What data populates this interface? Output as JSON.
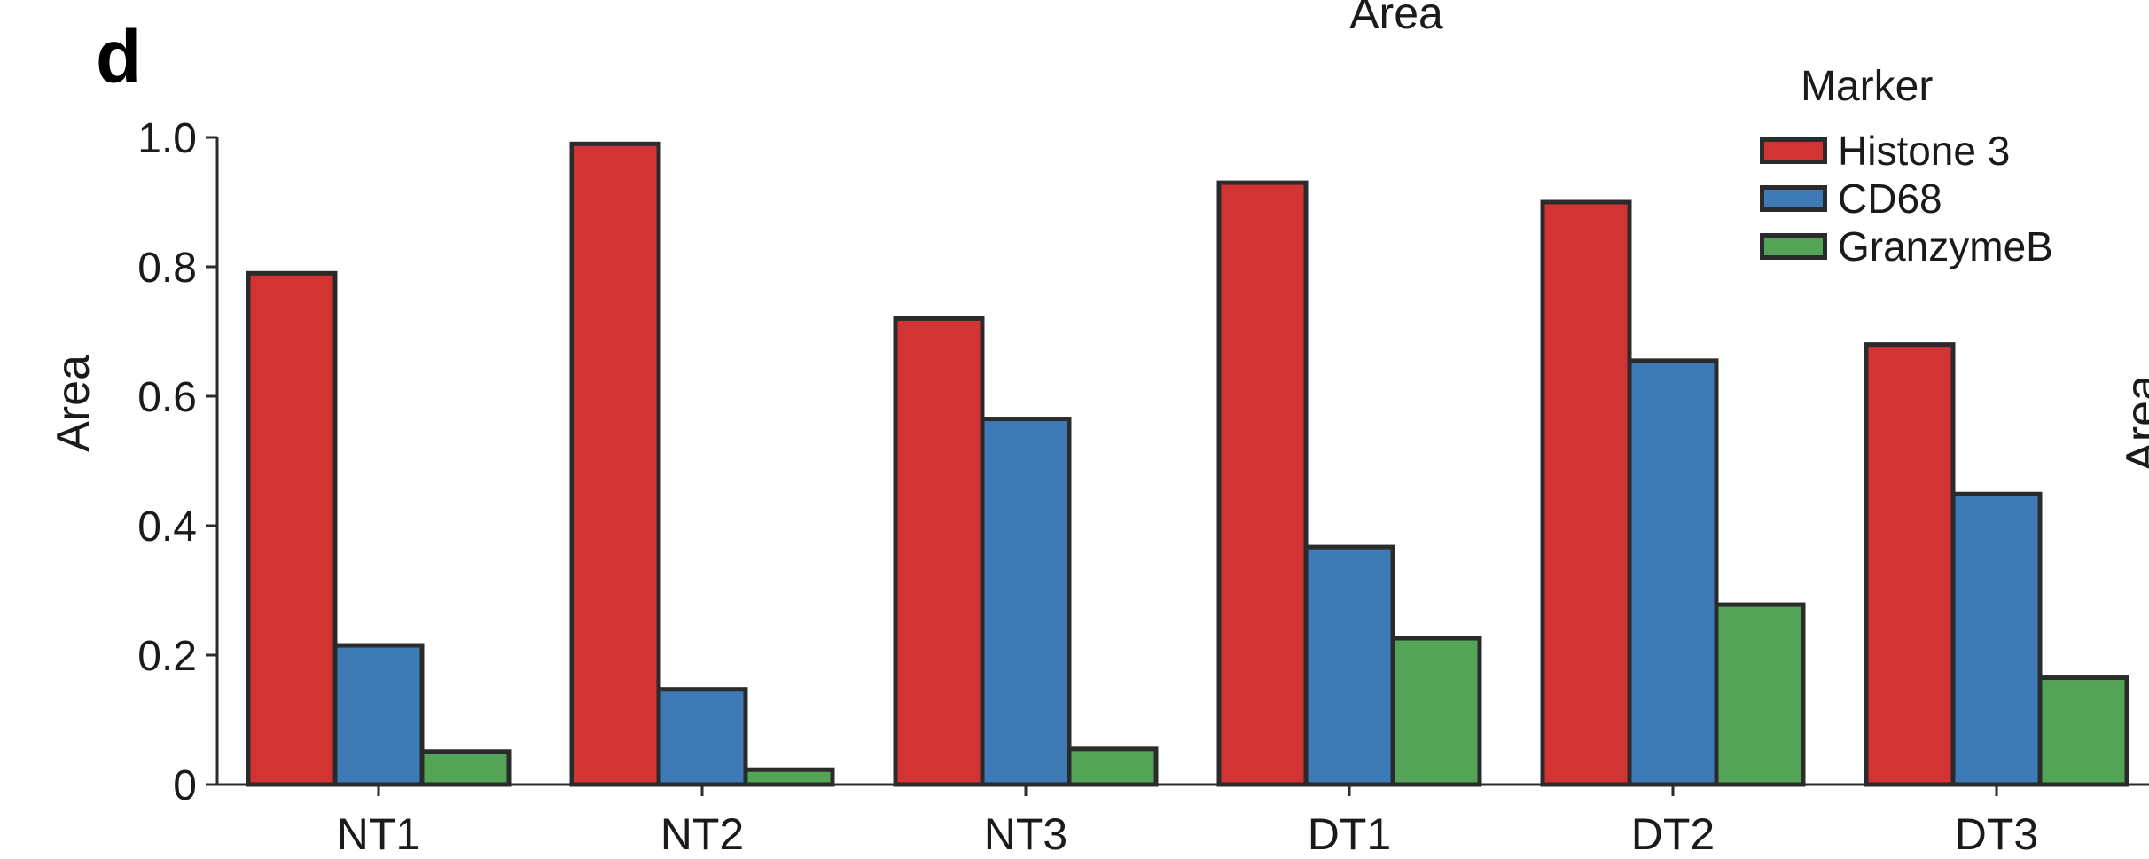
{
  "chart_data": {
    "type": "bar",
    "panel_label": "d",
    "title": "Area",
    "ylabel": "Area",
    "right_clipped_ylabel": "Area",
    "categories": [
      "NT1",
      "NT2",
      "NT3",
      "DT1",
      "DT2",
      "DT3"
    ],
    "series": [
      {
        "name": "Histone 3",
        "color": "#d23333",
        "values": [
          0.79,
          0.99,
          0.72,
          0.93,
          0.9,
          0.68
        ]
      },
      {
        "name": "CD68",
        "color": "#3d7ab6",
        "values": [
          0.215,
          0.147,
          0.565,
          0.367,
          0.655,
          0.449
        ]
      },
      {
        "name": "GranzymeB",
        "color": "#54a457",
        "values": [
          0.051,
          0.023,
          0.055,
          0.226,
          0.278,
          0.165
        ]
      }
    ],
    "legend": {
      "title": "Marker",
      "position": "upper right"
    },
    "ylim": [
      0,
      1.0
    ],
    "yticks": [
      0,
      0.2,
      0.4,
      0.6,
      0.8,
      1.0
    ],
    "ytick_labels": [
      "0",
      "0.2",
      "0.4",
      "0.6",
      "0.8",
      "1.0"
    ],
    "grid": false,
    "bar_edge_color": "#2b2b2b",
    "axis_color": "#2b2b2b"
  }
}
